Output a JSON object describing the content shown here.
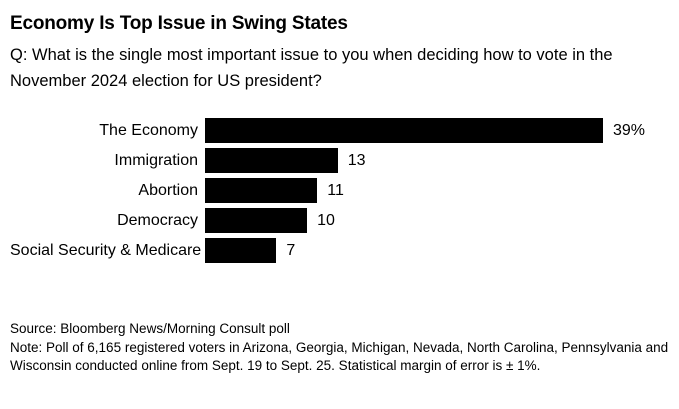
{
  "chart_data": {
    "type": "bar",
    "orientation": "horizontal",
    "title": "Economy Is Top Issue in Swing States",
    "subtitle": "Q: What is the single most important issue to you when deciding how to vote in the November 2024 election for US president?",
    "categories": [
      "The Economy",
      "Immigration",
      "Abortion",
      "Democracy",
      "Social Security & Medicare"
    ],
    "values": [
      39,
      13,
      11,
      10,
      7
    ],
    "value_labels": [
      "39%",
      "13",
      "11",
      "10",
      "7"
    ],
    "xlim": [
      0,
      39
    ],
    "grid": false,
    "legend": false,
    "bar_color": "#000000",
    "background_color": "#ffffff",
    "text_color": "#000000",
    "source": "Source: Bloomberg News/Morning Consult poll",
    "note": "Note: Poll of 6,165 registered voters in Arizona, Georgia, Michigan, Nevada, North Carolina, Pennsylvania and Wisconsin conducted online from Sept. 19 to Sept. 25. Statistical margin of error is ± 1%."
  }
}
